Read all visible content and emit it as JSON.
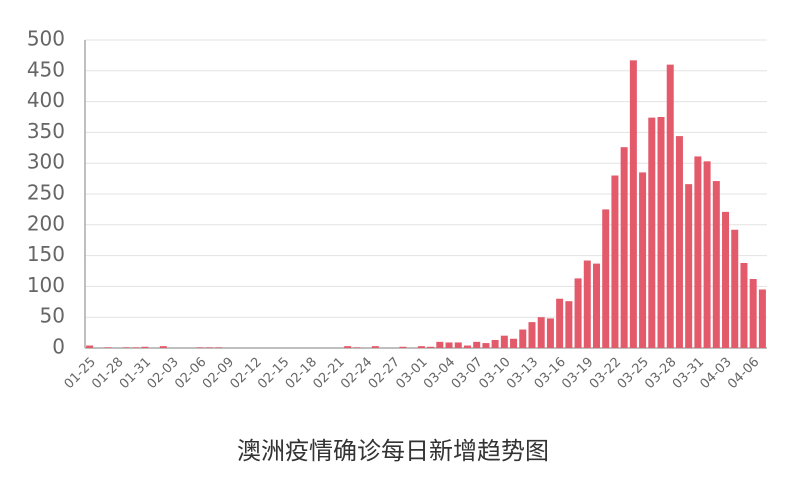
{
  "chart_data": {
    "type": "bar",
    "title": "澳洲疫情确诊每日新增趋势图",
    "categories": [
      "01-25",
      null,
      null,
      "01-28",
      null,
      null,
      "01-31",
      null,
      null,
      "02-03",
      null,
      null,
      "02-06",
      null,
      null,
      "02-09",
      null,
      null,
      "02-12",
      null,
      null,
      "02-15",
      null,
      null,
      "02-18",
      null,
      null,
      "02-21",
      null,
      null,
      "02-24",
      null,
      null,
      "02-27",
      null,
      null,
      "03-01",
      null,
      null,
      "03-04",
      null,
      null,
      "03-07",
      null,
      null,
      "03-10",
      null,
      null,
      "03-13",
      null,
      null,
      "03-16",
      null,
      null,
      "03-19",
      null,
      null,
      "03-22",
      null,
      null,
      "03-25",
      null,
      null,
      "03-28",
      null,
      null,
      "03-31",
      null,
      null,
      "04-03",
      null,
      null,
      "04-06",
      null
    ],
    "values": [
      4,
      0,
      1,
      0,
      1,
      1,
      2,
      0,
      3,
      0,
      0,
      0,
      1,
      1,
      1,
      0,
      0,
      0,
      0,
      0,
      0,
      0,
      0,
      0,
      0,
      0,
      0,
      0,
      3,
      1,
      0,
      3,
      0,
      0,
      2,
      0,
      3,
      2,
      10,
      9,
      9,
      4,
      10,
      8,
      13,
      20,
      15,
      30,
      42,
      50,
      48,
      80,
      76,
      113,
      142,
      137,
      225,
      280,
      326,
      467,
      285,
      374,
      375,
      460,
      344,
      266,
      311,
      303,
      271,
      221,
      192,
      138,
      112,
      95
    ],
    "color": "#e35a6a",
    "ylim": [
      0,
      500
    ],
    "yticks": [
      0,
      50,
      100,
      150,
      200,
      250,
      300,
      350,
      400,
      450,
      500
    ],
    "grid": true
  }
}
